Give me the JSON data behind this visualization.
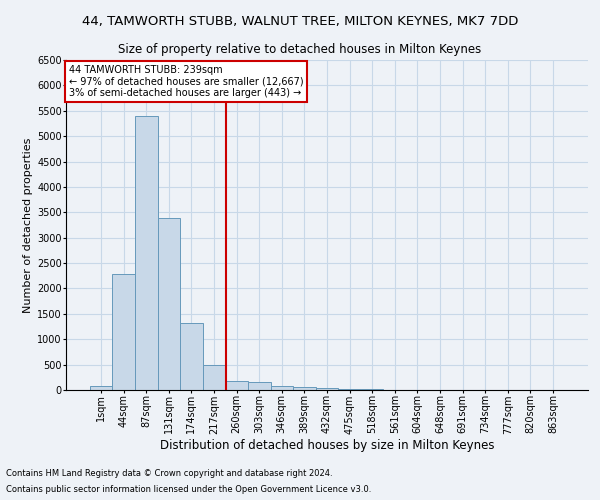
{
  "title": "44, TAMWORTH STUBB, WALNUT TREE, MILTON KEYNES, MK7 7DD",
  "subtitle": "Size of property relative to detached houses in Milton Keynes",
  "xlabel": "Distribution of detached houses by size in Milton Keynes",
  "ylabel": "Number of detached properties",
  "footnote1": "Contains HM Land Registry data © Crown copyright and database right 2024.",
  "footnote2": "Contains public sector information licensed under the Open Government Licence v3.0.",
  "bar_labels": [
    "1sqm",
    "44sqm",
    "87sqm",
    "131sqm",
    "174sqm",
    "217sqm",
    "260sqm",
    "303sqm",
    "346sqm",
    "389sqm",
    "432sqm",
    "475sqm",
    "518sqm",
    "561sqm",
    "604sqm",
    "648sqm",
    "691sqm",
    "734sqm",
    "777sqm",
    "820sqm",
    "863sqm"
  ],
  "bar_values": [
    75,
    2280,
    5400,
    3380,
    1320,
    490,
    185,
    155,
    75,
    55,
    30,
    20,
    10,
    5,
    5,
    3,
    2,
    2,
    1,
    1,
    1
  ],
  "bar_color": "#c8d8e8",
  "bar_edgecolor": "#6699bb",
  "annotation_box_text": "44 TAMWORTH STUBB: 239sqm\n← 97% of detached houses are smaller (12,667)\n3% of semi-detached houses are larger (443) →",
  "annotation_box_color": "#cc0000",
  "vline_color": "#cc0000",
  "vline_x": 5.51,
  "ylim": [
    0,
    6500
  ],
  "yticks": [
    0,
    500,
    1000,
    1500,
    2000,
    2500,
    3000,
    3500,
    4000,
    4500,
    5000,
    5500,
    6000,
    6500
  ],
  "grid_color": "#c8d8e8",
  "bg_color": "#eef2f7",
  "title_fontsize": 9.5,
  "subtitle_fontsize": 8.5,
  "ylabel_fontsize": 8,
  "xlabel_fontsize": 8.5,
  "tick_fontsize": 7,
  "annot_fontsize": 7,
  "footnote_fontsize": 6
}
